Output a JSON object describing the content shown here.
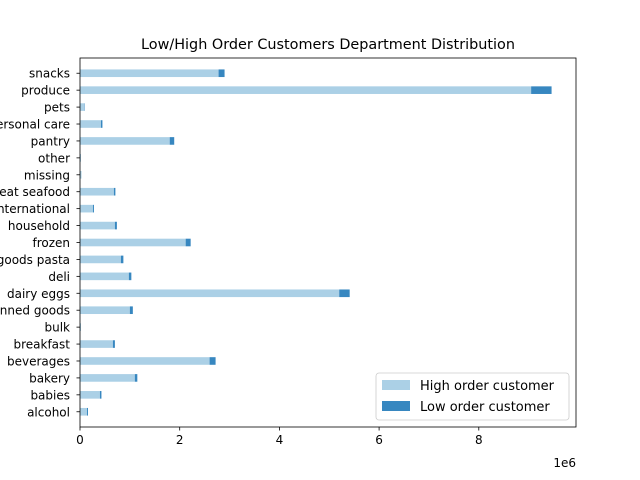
{
  "chart_data": {
    "type": "bar",
    "orientation": "horizontal",
    "stacked": true,
    "title": "Low/High Order Customers Department Distribution",
    "xlabel": "",
    "ylabel": "",
    "x_offset_label": "1e6",
    "xlim": [
      0,
      9.95
    ],
    "x_ticks": [
      0,
      2,
      4,
      6,
      8
    ],
    "categories": [
      "alcohol",
      "babies",
      "bakery",
      "beverages",
      "breakfast",
      "bulk",
      "canned goods",
      "dairy eggs",
      "deli",
      "dry goods pasta",
      "frozen",
      "household",
      "international",
      "meat seafood",
      "missing",
      "other",
      "pantry",
      "personal care",
      "pets",
      "produce",
      "snacks"
    ],
    "series": [
      {
        "name": "High order customer",
        "color": "#abd0e6",
        "values": [
          0.14,
          0.4,
          1.1,
          2.6,
          0.66,
          0.02,
          1.0,
          5.2,
          0.98,
          0.82,
          2.12,
          0.7,
          0.26,
          0.68,
          0.03,
          0.02,
          1.8,
          0.42,
          0.08,
          9.05,
          2.78
        ]
      },
      {
        "name": "Low order customer",
        "color": "#3787c0",
        "values": [
          0.02,
          0.03,
          0.05,
          0.12,
          0.04,
          0.0,
          0.06,
          0.21,
          0.05,
          0.05,
          0.1,
          0.04,
          0.02,
          0.03,
          0.0,
          0.0,
          0.09,
          0.03,
          0.01,
          0.41,
          0.12
        ]
      }
    ],
    "legend_position": "lower-right",
    "grid": false
  }
}
